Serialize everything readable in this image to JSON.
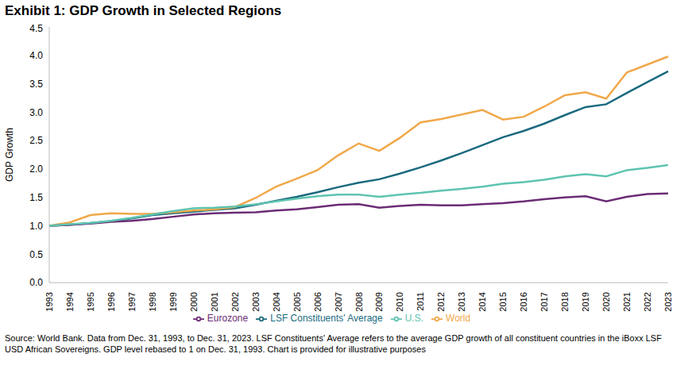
{
  "chart_data": {
    "type": "line",
    "title": "Exhibit 1: GDP Growth in Selected Regions",
    "y_label": "GDP Growth",
    "source": "Source: World Bank.  Data from Dec. 31, 1993, to Dec. 31, 2023. LSF Constituents' Average refers to the average GDP growth of all constituent countries in the iBoxx LSF USD African Sovereigns.  GDP level rebased to 1 on Dec. 31, 1993. Chart is provided for illustrative purposes",
    "categories": [
      "1993",
      "1994",
      "1995",
      "1996",
      "1997",
      "1998",
      "1999",
      "2000",
      "2001",
      "2002",
      "2003",
      "2004",
      "2005",
      "2006",
      "2007",
      "2008",
      "2009",
      "2010",
      "2011",
      "2012",
      "2013",
      "2014",
      "2015",
      "2016",
      "2017",
      "2018",
      "2019",
      "2020",
      "2021",
      "2022",
      "2023"
    ],
    "series": [
      {
        "name": "LSF Constituents' Average",
        "color": "#1b6a7f",
        "values": [
          1.0,
          1.02,
          1.05,
          1.08,
          1.13,
          1.19,
          1.22,
          1.25,
          1.28,
          1.31,
          1.37,
          1.44,
          1.51,
          1.59,
          1.68,
          1.76,
          1.82,
          1.92,
          2.03,
          2.15,
          2.28,
          2.42,
          2.56,
          2.67,
          2.8,
          2.95,
          3.09,
          3.14,
          3.34,
          3.53,
          3.72
        ]
      },
      {
        "name": "World",
        "color": "#f0a84a",
        "values": [
          1.0,
          1.06,
          1.19,
          1.22,
          1.21,
          1.21,
          1.24,
          1.27,
          1.29,
          1.33,
          1.49,
          1.69,
          1.83,
          1.98,
          2.24,
          2.45,
          2.32,
          2.55,
          2.82,
          2.88,
          2.96,
          3.04,
          2.87,
          2.92,
          3.1,
          3.3,
          3.35,
          3.24,
          3.7,
          3.84,
          3.98
        ]
      },
      {
        "name": "Eurozone",
        "color": "#6b2c75",
        "values": [
          1.0,
          1.02,
          1.04,
          1.07,
          1.09,
          1.12,
          1.16,
          1.2,
          1.22,
          1.23,
          1.24,
          1.27,
          1.29,
          1.33,
          1.37,
          1.38,
          1.32,
          1.35,
          1.37,
          1.36,
          1.36,
          1.38,
          1.4,
          1.43,
          1.47,
          1.5,
          1.52,
          1.43,
          1.51,
          1.56,
          1.57
        ]
      },
      {
        "name": "U.S.",
        "color": "#5ec4b0",
        "values": [
          1.0,
          1.03,
          1.05,
          1.09,
          1.14,
          1.2,
          1.26,
          1.31,
          1.32,
          1.34,
          1.38,
          1.43,
          1.48,
          1.52,
          1.55,
          1.55,
          1.51,
          1.55,
          1.58,
          1.62,
          1.65,
          1.69,
          1.74,
          1.77,
          1.81,
          1.87,
          1.91,
          1.87,
          1.98,
          2.02,
          2.07
        ]
      }
    ],
    "ylim": [
      0,
      4.5
    ],
    "yticks": [
      {
        "value": 0,
        "label": "0.0"
      },
      0.5,
      {
        "value": 1,
        "label": "1.0"
      },
      1.5,
      {
        "value": 2,
        "label": "2.0"
      },
      2.5,
      {
        "value": 3,
        "label": "3.0"
      },
      3.5,
      {
        "value": 4,
        "label": "4.0"
      },
      4.5
    ],
    "grid": false,
    "legend": "bottom"
  }
}
